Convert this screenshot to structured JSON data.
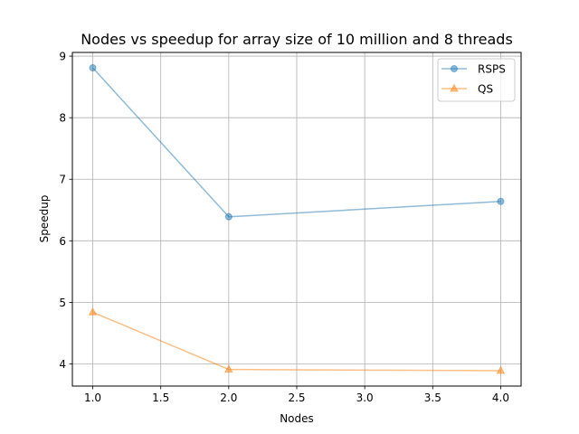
{
  "chart_data": {
    "type": "line",
    "title": "Nodes vs speedup for array size of 10 million and 8 threads",
    "xlabel": "Nodes",
    "ylabel": "Speedup",
    "xlim": [
      0.85,
      4.15
    ],
    "ylim": [
      3.64,
      9.06
    ],
    "xticks": [
      1.0,
      1.5,
      2.0,
      2.5,
      3.0,
      3.5,
      4.0
    ],
    "xtick_labels": [
      "1.0",
      "1.5",
      "2.0",
      "2.5",
      "3.0",
      "3.5",
      "4.0"
    ],
    "yticks": [
      4,
      5,
      6,
      7,
      8,
      9
    ],
    "ytick_labels": [
      "4",
      "5",
      "6",
      "7",
      "8",
      "9"
    ],
    "grid": true,
    "legend_position": "top-right",
    "x": [
      1.0,
      2.0,
      4.0
    ],
    "series": [
      {
        "name": "RSPS",
        "values": [
          8.81,
          6.39,
          6.64
        ],
        "color": "#1f77b4",
        "marker": "circle"
      },
      {
        "name": "QS",
        "values": [
          4.84,
          3.91,
          3.89
        ],
        "color": "#ff7f0e",
        "marker": "triangle"
      }
    ]
  }
}
